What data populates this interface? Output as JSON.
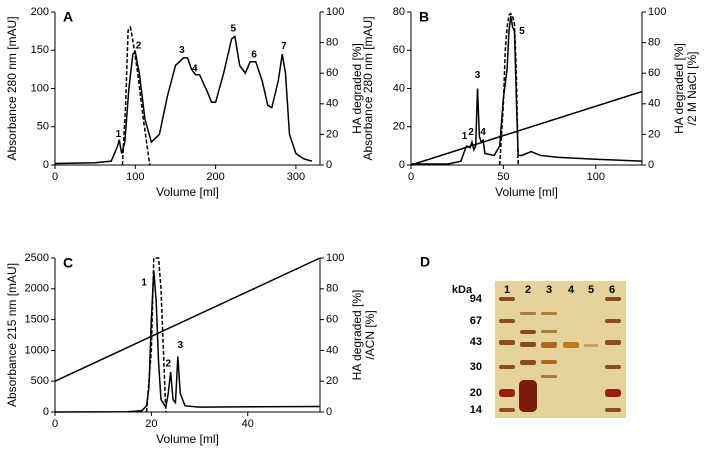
{
  "chart_data": [
    {
      "type": "line",
      "panel": "A",
      "xlabel": "Volume [ml]",
      "ylabel": "Absorbance 280 nm [mAU]",
      "y2label": [
        "HA degraded [%]"
      ],
      "xlim": [
        0,
        330
      ],
      "xticks": [
        0,
        100,
        200,
        300
      ],
      "ylim": [
        0,
        200
      ],
      "yticks": [
        0,
        50,
        100,
        150,
        200
      ],
      "y2lim": [
        0,
        100
      ],
      "y2ticks": [
        0,
        20,
        40,
        60,
        80,
        100
      ],
      "series": [
        {
          "color": "#000000",
          "dash": false,
          "x": [
            0,
            50,
            70,
            78,
            80,
            83,
            87,
            92,
            97,
            100,
            105,
            112,
            120,
            130,
            140,
            150,
            160,
            165,
            170,
            175,
            180,
            190,
            195,
            200,
            210,
            220,
            224,
            230,
            237,
            243,
            250,
            258,
            265,
            270,
            278,
            283,
            287,
            292,
            300,
            310,
            320
          ],
          "values": [
            2,
            3,
            5,
            25,
            33,
            15,
            30,
            100,
            145,
            148,
            120,
            60,
            30,
            40,
            90,
            130,
            140,
            140,
            125,
            118,
            118,
            95,
            82,
            82,
            120,
            165,
            168,
            130,
            120,
            135,
            135,
            110,
            78,
            75,
            110,
            145,
            120,
            40,
            15,
            8,
            5
          ]
        },
        {
          "color": "#000000",
          "dash": true,
          "axis": "y2",
          "x": [
            84,
            88,
            91,
            94,
            98,
            103,
            110,
            118
          ],
          "values": [
            0,
            40,
            88,
            90,
            78,
            60,
            30,
            0
          ]
        }
      ],
      "peaks": [
        {
          "label": "1",
          "x": 79,
          "y": 40
        },
        {
          "label": "2",
          "x": 104,
          "y": 156
        },
        {
          "label": "3",
          "x": 158,
          "y": 150
        },
        {
          "label": "4",
          "x": 174,
          "y": 126
        },
        {
          "label": "5",
          "x": 222,
          "y": 178
        },
        {
          "label": "6",
          "x": 248,
          "y": 144
        },
        {
          "label": "7",
          "x": 285,
          "y": 155
        }
      ]
    },
    {
      "type": "line",
      "panel": "B",
      "xlabel": "Volume [ml]",
      "ylabel": "Absorbance 280 nm [mAU]",
      "y2label": [
        "HA degraded [%]",
        "/2 M NaCl [%]"
      ],
      "xlim": [
        0,
        125
      ],
      "xticks": [
        0,
        50,
        100
      ],
      "ylim": [
        0,
        80
      ],
      "yticks": [
        0,
        20,
        40,
        60,
        80
      ],
      "y2lim": [
        0,
        100
      ],
      "y2ticks": [
        0,
        20,
        40,
        60,
        80,
        100
      ],
      "series": [
        {
          "color": "#000000",
          "dash": false,
          "x": [
            0,
            20,
            27,
            30,
            32,
            33,
            34,
            35,
            36,
            37,
            38,
            39,
            40,
            45,
            48,
            50,
            52,
            53,
            54,
            55,
            56,
            57,
            58,
            60,
            65,
            70,
            80,
            100,
            125
          ],
          "values": [
            0.5,
            0.5,
            2,
            10,
            9,
            12,
            8,
            10,
            40,
            15,
            12,
            13,
            6,
            5,
            10,
            35,
            50,
            70,
            78,
            72,
            70,
            35,
            5,
            5,
            7,
            5,
            4,
            3,
            2
          ]
        },
        {
          "color": "#000000",
          "dash": true,
          "axis": "y2",
          "x": [
            48,
            50,
            51,
            52,
            53,
            54,
            55,
            56,
            57,
            58
          ],
          "values": [
            0,
            40,
            75,
            90,
            98,
            99,
            97,
            92,
            60,
            0
          ]
        },
        {
          "color": "#000000",
          "dash": false,
          "axis": "y2",
          "x": [
            0,
            125
          ],
          "values": [
            0,
            48
          ]
        }
      ],
      "peaks": [
        {
          "label": "1",
          "x": 29,
          "y": 15
        },
        {
          "label": "2",
          "x": 32.5,
          "y": 17
        },
        {
          "label": "3",
          "x": 36,
          "y": 47
        },
        {
          "label": "4",
          "x": 39,
          "y": 17
        },
        {
          "label": "5",
          "x": 60,
          "y": 70
        }
      ]
    },
    {
      "type": "line",
      "panel": "C",
      "xlabel": "Volume [ml]",
      "ylabel": "Absorbance 215 nm [mAU]",
      "y2label": [
        "HA degraded [%]",
        "/ACN [%]"
      ],
      "xlim": [
        0,
        55
      ],
      "xticks": [
        0,
        20,
        40
      ],
      "ylim": [
        0,
        2500
      ],
      "yticks": [
        0,
        500,
        1000,
        1500,
        2000,
        2500
      ],
      "y2lim": [
        0,
        100
      ],
      "y2ticks": [
        0,
        20,
        40,
        60,
        80,
        100
      ],
      "series": [
        {
          "color": "#000000",
          "dash": false,
          "x": [
            0,
            15,
            18,
            19,
            19.5,
            20,
            20.5,
            21,
            21.5,
            22,
            23,
            23.5,
            24,
            24.5,
            25,
            25.5,
            26,
            27,
            30,
            55
          ],
          "values": [
            0,
            5,
            20,
            100,
            400,
            1500,
            2300,
            1800,
            800,
            200,
            80,
            300,
            650,
            200,
            150,
            900,
            300,
            100,
            80,
            90
          ]
        },
        {
          "color": "#000000",
          "dash": true,
          "axis": "y2",
          "x": [
            19,
            20,
            20.5,
            21.5,
            22,
            22.5,
            23
          ],
          "values": [
            0,
            40,
            100,
            100,
            80,
            40,
            0
          ]
        },
        {
          "color": "#000000",
          "dash": false,
          "axis": "y2",
          "x": [
            0,
            55
          ],
          "values": [
            20,
            100
          ]
        }
      ],
      "peaks": [
        {
          "label": "1",
          "x": 18.5,
          "y": 2100
        },
        {
          "label": "2",
          "x": 23.5,
          "y": 780
        },
        {
          "label": "3",
          "x": 26,
          "y": 1080
        }
      ]
    }
  ],
  "gel": {
    "panel": "D",
    "unit": "kDa",
    "markers": [
      "94",
      "67",
      "43",
      "30",
      "20",
      "14"
    ],
    "lanes": [
      "1",
      "2",
      "3",
      "4",
      "5",
      "6"
    ]
  }
}
